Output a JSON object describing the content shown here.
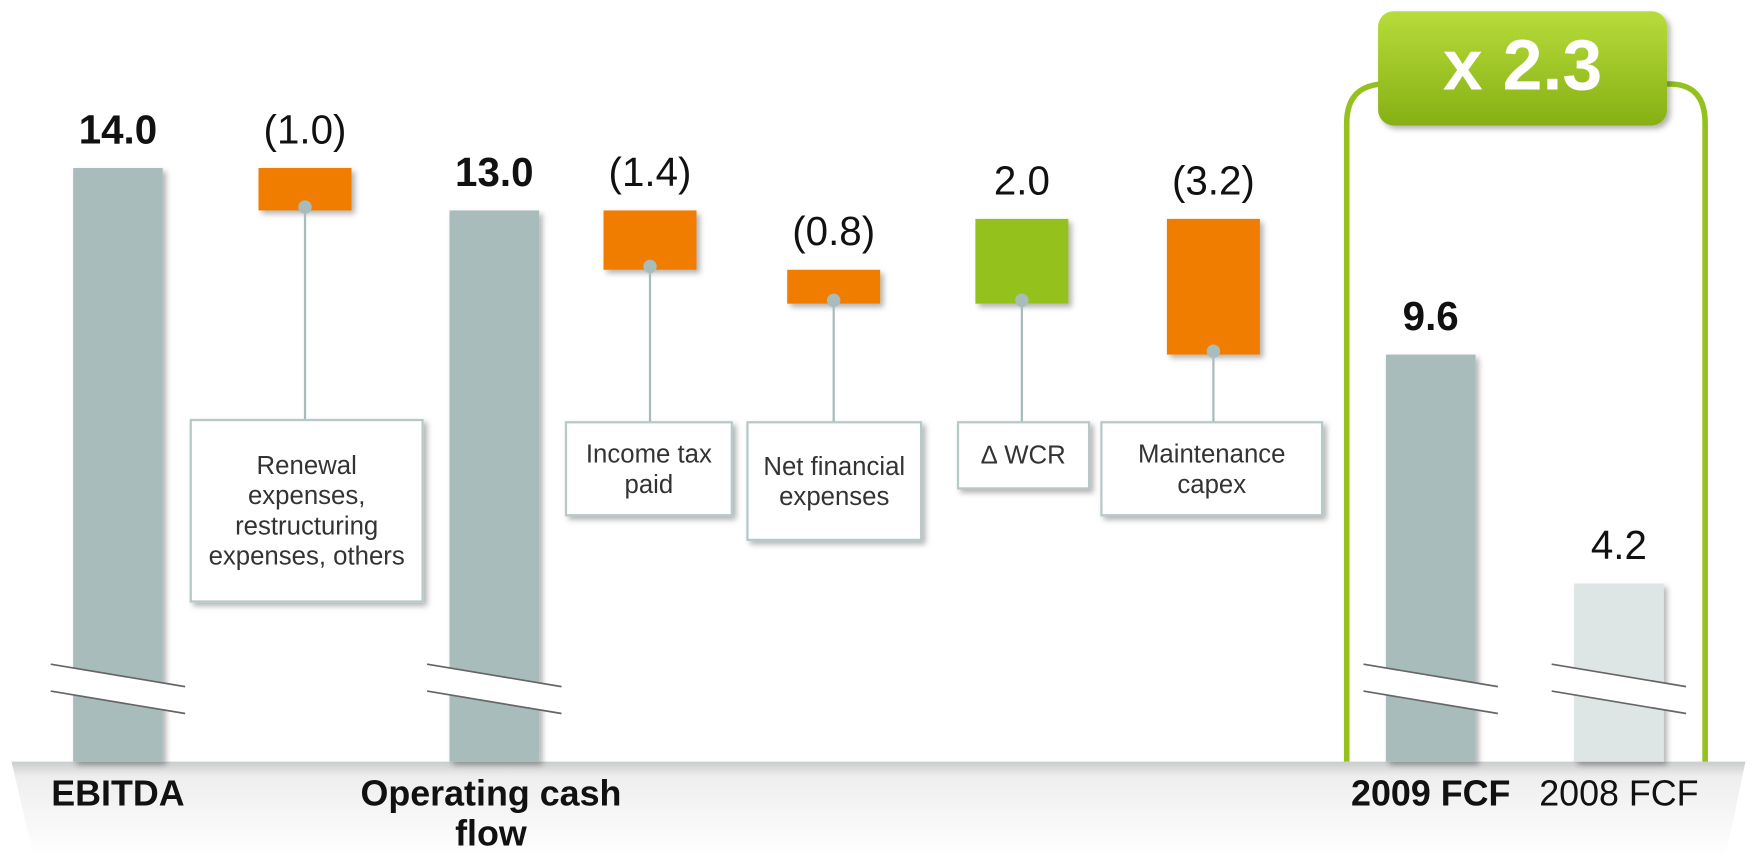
{
  "chart_data": {
    "type": "waterfall",
    "categories": [
      "EBITDA",
      "Renewal expenses, restructuring expenses, others",
      "Operating cash flow",
      "Income tax paid",
      "Net financial expenses",
      "∆ WCR",
      "Maintenance capex",
      "2009 FCF",
      "2008 FCF"
    ],
    "values": [
      14.0,
      -1.0,
      13.0,
      -1.4,
      -0.8,
      2.0,
      -3.2,
      9.6,
      4.2
    ],
    "value_labels": [
      "14.0",
      "(1.0)",
      "13.0",
      "(1.4)",
      "(0.8)",
      "2.0",
      "(3.2)",
      "9.6",
      "4.2"
    ],
    "totals": [
      true,
      false,
      true,
      false,
      false,
      false,
      false,
      true,
      true
    ],
    "emphasis": [
      true,
      false,
      true,
      false,
      false,
      false,
      false,
      true,
      false
    ],
    "colors": {
      "total": "#a9bcbc",
      "previous": "#dde5e5",
      "negative": "#f07d00",
      "positive": "#95c11f",
      "highlight": "#95c11f"
    },
    "annotation": "x 2.3"
  }
}
